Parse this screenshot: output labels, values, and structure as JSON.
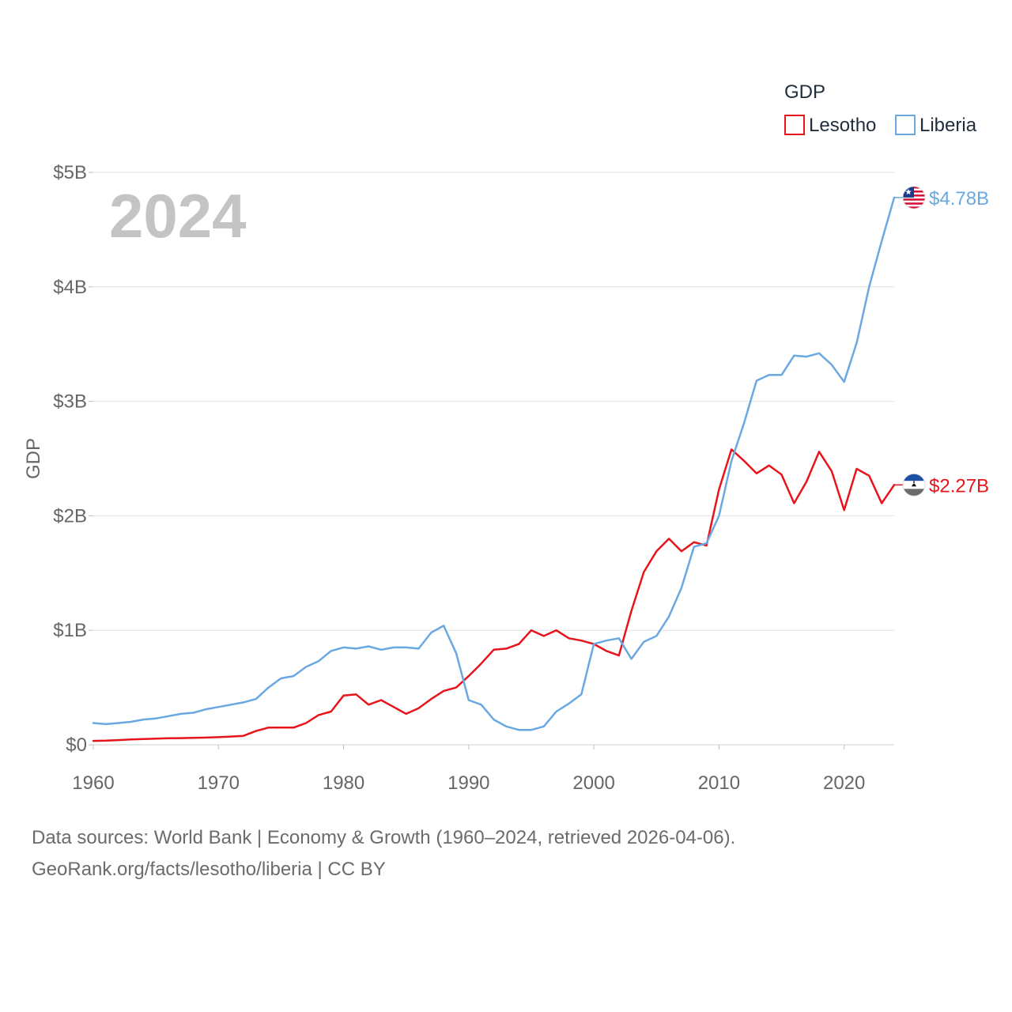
{
  "chart_data": {
    "type": "line",
    "year_label": "2024",
    "ylabel": "GDP",
    "legend_title": "GDP",
    "legend_position": "top-right",
    "x": [
      1960,
      1961,
      1962,
      1963,
      1964,
      1965,
      1966,
      1967,
      1968,
      1969,
      1970,
      1971,
      1972,
      1973,
      1974,
      1975,
      1976,
      1977,
      1978,
      1979,
      1980,
      1981,
      1982,
      1983,
      1984,
      1985,
      1986,
      1987,
      1988,
      1989,
      1990,
      1991,
      1992,
      1993,
      1994,
      1995,
      1996,
      1997,
      1998,
      1999,
      2000,
      2001,
      2002,
      2003,
      2004,
      2005,
      2006,
      2007,
      2008,
      2009,
      2010,
      2011,
      2012,
      2013,
      2014,
      2015,
      2016,
      2017,
      2018,
      2019,
      2020,
      2021,
      2022,
      2023,
      2024
    ],
    "xlim": [
      1960,
      2024
    ],
    "xticks": [
      1960,
      1970,
      1980,
      1990,
      2000,
      2010,
      2020
    ],
    "xtick_labels": [
      "1960",
      "1970",
      "1980",
      "1990",
      "2000",
      "2010",
      "2020"
    ],
    "ylim": [
      0,
      5
    ],
    "yticks": [
      0,
      1,
      2,
      3,
      4,
      5
    ],
    "ytick_labels": [
      "$0",
      "$1B",
      "$2B",
      "$3B",
      "$4B",
      "$5B"
    ],
    "grid": true,
    "series": [
      {
        "name": "Lesotho",
        "color": "#e8141b",
        "end_label": "$2.27B",
        "flag": "lesotho-flag",
        "values": [
          0.034,
          0.036,
          0.041,
          0.046,
          0.05,
          0.054,
          0.057,
          0.058,
          0.06,
          0.063,
          0.066,
          0.072,
          0.078,
          0.12,
          0.15,
          0.15,
          0.15,
          0.19,
          0.26,
          0.29,
          0.43,
          0.44,
          0.35,
          0.39,
          0.33,
          0.27,
          0.32,
          0.4,
          0.47,
          0.5,
          0.6,
          0.71,
          0.83,
          0.84,
          0.88,
          1.0,
          0.95,
          1.0,
          0.93,
          0.91,
          0.88,
          0.82,
          0.78,
          1.17,
          1.51,
          1.69,
          1.8,
          1.69,
          1.77,
          1.74,
          2.23,
          2.58,
          2.48,
          2.37,
          2.44,
          2.36,
          2.11,
          2.3,
          2.56,
          2.39,
          2.05,
          2.41,
          2.35,
          2.11,
          2.27
        ]
      },
      {
        "name": "Liberia",
        "color": "#6aa8e2",
        "end_label": "$4.78B",
        "flag": "liberia-flag",
        "values": [
          0.19,
          0.18,
          0.19,
          0.2,
          0.22,
          0.23,
          0.25,
          0.27,
          0.28,
          0.31,
          0.33,
          0.35,
          0.37,
          0.4,
          0.5,
          0.58,
          0.6,
          0.68,
          0.73,
          0.82,
          0.85,
          0.84,
          0.86,
          0.83,
          0.85,
          0.85,
          0.84,
          0.98,
          1.04,
          0.8,
          0.39,
          0.35,
          0.22,
          0.16,
          0.13,
          0.13,
          0.16,
          0.29,
          0.36,
          0.44,
          0.88,
          0.91,
          0.93,
          0.75,
          0.9,
          0.95,
          1.12,
          1.37,
          1.73,
          1.76,
          2.0,
          2.48,
          2.81,
          3.18,
          3.23,
          3.23,
          3.4,
          3.39,
          3.42,
          3.32,
          3.17,
          3.51,
          4.0,
          4.4,
          4.78
        ]
      }
    ]
  },
  "source": {
    "line1": "Data sources: World Bank | Economy & Growth (1960–2024, retrieved 2026-04-06).",
    "line2": "GeoRank.org/facts/lesotho/liberia | CC BY"
  }
}
